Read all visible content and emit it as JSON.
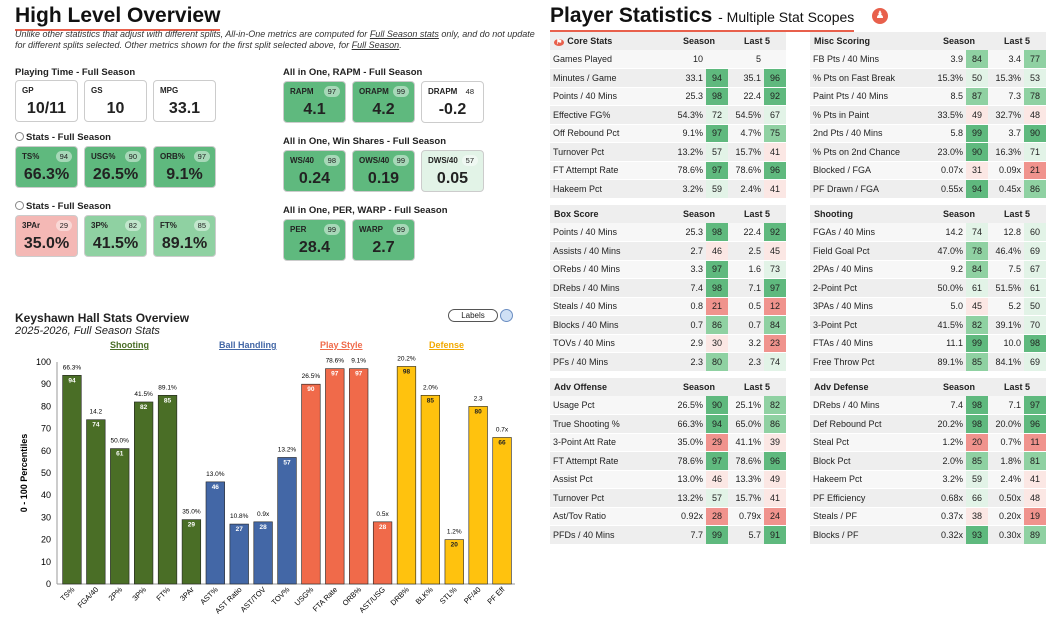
{
  "overview": {
    "title": "High Level Overview",
    "note": [
      "Unlike other statistics that adjust with different splits, All-in-One metrics are computed for ",
      "Full Season stats",
      " only, and do not update for different splits selected. Other metrics shown for the first split selected above, for ",
      "Full Season",
      "."
    ],
    "playing_time": {
      "title": "Playing Time - Full Season",
      "cards": [
        {
          "label": "GP",
          "value": "10/11"
        },
        {
          "label": "GS",
          "value": "10"
        },
        {
          "label": "MPG",
          "value": "33.1"
        }
      ]
    },
    "stats1": {
      "title": "Stats - Full Season",
      "cards": [
        {
          "label": "TS%",
          "value": "66.3%",
          "pct": "94"
        },
        {
          "label": "USG%",
          "value": "26.5%",
          "pct": "90"
        },
        {
          "label": "ORB%",
          "value": "9.1%",
          "pct": "97"
        }
      ]
    },
    "stats2": {
      "title": "Stats - Full Season",
      "cards": [
        {
          "label": "3PAr",
          "value": "35.0%",
          "pct": "29"
        },
        {
          "label": "3P%",
          "value": "41.5%",
          "pct": "82"
        },
        {
          "label": "FT%",
          "value": "89.1%",
          "pct": "85"
        }
      ]
    },
    "rapm": {
      "title": "All in One, RAPM - Full Season",
      "cards": [
        {
          "label": "RAPM",
          "value": "4.1",
          "pct": "97"
        },
        {
          "label": "ORAPM",
          "value": "4.2",
          "pct": "99"
        },
        {
          "label": "DRAPM",
          "value": "-0.2",
          "pct": "48"
        }
      ]
    },
    "ws": {
      "title": "All in One, Win Shares - Full Season",
      "cards": [
        {
          "label": "WS/40",
          "value": "0.24",
          "pct": "98"
        },
        {
          "label": "OWS/40",
          "value": "0.19",
          "pct": "99"
        },
        {
          "label": "DWS/40",
          "value": "0.05",
          "pct": "57"
        }
      ]
    },
    "per": {
      "title": "All in One, PER, WARP - Full Season",
      "cards": [
        {
          "label": "PER",
          "value": "28.4",
          "pct": "99"
        },
        {
          "label": "WARP",
          "value": "2.7",
          "pct": "99"
        }
      ]
    }
  },
  "player_stats": {
    "title": "Player Statistics",
    "subtitle": "- Multiple Stat Scopes",
    "tables": [
      {
        "name": "Core Stats",
        "cols": [
          "Season",
          "Last 5"
        ],
        "rows": [
          [
            "Games Played",
            "10",
            "",
            "5",
            ""
          ],
          [
            "Minutes / Game",
            "33.1",
            "94",
            "35.1",
            "96"
          ],
          [
            "Points / 40 Mins",
            "25.3",
            "98",
            "22.4",
            "92"
          ],
          [
            "Effective FG%",
            "54.3%",
            "72",
            "54.5%",
            "67"
          ],
          [
            "Off Rebound Pct",
            "9.1%",
            "97",
            "4.7%",
            "75"
          ],
          [
            "Turnover Pct",
            "13.2%",
            "57",
            "15.7%",
            "41"
          ],
          [
            "FT Attempt Rate",
            "78.6%",
            "97",
            "78.6%",
            "96"
          ],
          [
            "Hakeem Pct",
            "3.2%",
            "59",
            "2.4%",
            "41"
          ]
        ]
      },
      {
        "name": "Misc Scoring",
        "cols": [
          "Season",
          "Last 5"
        ],
        "rows": [
          [
            "FB Pts / 40 Mins",
            "3.9",
            "84",
            "3.4",
            "77"
          ],
          [
            "% Pts on Fast Break",
            "15.3%",
            "50",
            "15.3%",
            "53"
          ],
          [
            "Paint Pts / 40 Mins",
            "8.5",
            "87",
            "7.3",
            "78"
          ],
          [
            "% Pts in Paint",
            "33.5%",
            "49",
            "32.7%",
            "48"
          ],
          [
            "2nd Pts / 40 Mins",
            "5.8",
            "99",
            "3.7",
            "90"
          ],
          [
            "% Pts on 2nd Chance",
            "23.0%",
            "90",
            "16.3%",
            "71"
          ],
          [
            "Blocked / FGA",
            "0.07x",
            "31",
            "0.09x",
            "21"
          ],
          [
            "PF Drawn / FGA",
            "0.55x",
            "94",
            "0.45x",
            "86"
          ]
        ]
      },
      {
        "name": "Box Score",
        "cols": [
          "Season",
          "Last 5"
        ],
        "rows": [
          [
            "Points / 40 Mins",
            "25.3",
            "98",
            "22.4",
            "92"
          ],
          [
            "Assists / 40 Mins",
            "2.7",
            "46",
            "2.5",
            "45"
          ],
          [
            "ORebs / 40 Mins",
            "3.3",
            "97",
            "1.6",
            "73"
          ],
          [
            "DRebs / 40 Mins",
            "7.4",
            "98",
            "7.1",
            "97"
          ],
          [
            "Steals / 40 Mins",
            "0.8",
            "21",
            "0.5",
            "12"
          ],
          [
            "Blocks / 40 Mins",
            "0.7",
            "86",
            "0.7",
            "84"
          ],
          [
            "TOVs / 40 Mins",
            "2.9",
            "30",
            "3.2",
            "23"
          ],
          [
            "PFs / 40 Mins",
            "2.3",
            "80",
            "2.3",
            "74"
          ]
        ]
      },
      {
        "name": "Shooting",
        "cols": [
          "Season",
          "Last 5"
        ],
        "rows": [
          [
            "FGAs / 40 Mins",
            "14.2",
            "74",
            "12.8",
            "60"
          ],
          [
            "Field Goal Pct",
            "47.0%",
            "78",
            "46.4%",
            "69"
          ],
          [
            "2PAs / 40 Mins",
            "9.2",
            "84",
            "7.5",
            "67"
          ],
          [
            "2-Point Pct",
            "50.0%",
            "61",
            "51.5%",
            "61"
          ],
          [
            "3PAs / 40 Mins",
            "5.0",
            "45",
            "5.2",
            "50"
          ],
          [
            "3-Point Pct",
            "41.5%",
            "82",
            "39.1%",
            "70"
          ],
          [
            "FTAs / 40 Mins",
            "11.1",
            "99",
            "10.0",
            "98"
          ],
          [
            "Free Throw Pct",
            "89.1%",
            "85",
            "84.1%",
            "69"
          ]
        ]
      },
      {
        "name": "Adv Offense",
        "cols": [
          "Season",
          "Last 5"
        ],
        "rows": [
          [
            "Usage Pct",
            "26.5%",
            "90",
            "25.1%",
            "82"
          ],
          [
            "True Shooting %",
            "66.3%",
            "94",
            "65.0%",
            "86"
          ],
          [
            "3-Point Att Rate",
            "35.0%",
            "29",
            "41.1%",
            "39"
          ],
          [
            "FT Attempt Rate",
            "78.6%",
            "97",
            "78.6%",
            "96"
          ],
          [
            "Assist Pct",
            "13.0%",
            "46",
            "13.3%",
            "49"
          ],
          [
            "Turnover Pct",
            "13.2%",
            "57",
            "15.7%",
            "41"
          ],
          [
            "Ast/Tov Ratio",
            "0.92x",
            "28",
            "0.79x",
            "24"
          ],
          [
            "PFDs / 40 Mins",
            "7.7",
            "99",
            "5.7",
            "91"
          ]
        ]
      },
      {
        "name": "Adv Defense",
        "cols": [
          "Season",
          "Last 5"
        ],
        "rows": [
          [
            "DRebs / 40 Mins",
            "7.4",
            "98",
            "7.1",
            "97"
          ],
          [
            "Def Rebound Pct",
            "20.2%",
            "98",
            "20.0%",
            "96"
          ],
          [
            "Steal Pct",
            "1.2%",
            "20",
            "0.7%",
            "11"
          ],
          [
            "Block Pct",
            "2.0%",
            "85",
            "1.8%",
            "81"
          ],
          [
            "Hakeem Pct",
            "3.2%",
            "59",
            "2.4%",
            "41"
          ],
          [
            "PF Efficiency",
            "0.68x",
            "66",
            "0.50x",
            "48"
          ],
          [
            "Steals / PF",
            "0.37x",
            "38",
            "0.20x",
            "19"
          ],
          [
            "Blocks / PF",
            "0.32x",
            "93",
            "0.30x",
            "89"
          ]
        ]
      }
    ]
  },
  "chart_toggle": "Labels",
  "chart_data": {
    "type": "bar",
    "title": "Keyshawn Hall Stats Overview",
    "subtitle": "2025-2026, Full Season Stats",
    "ylabel": "0 - 100 Percentiles",
    "ylim": [
      0,
      100
    ],
    "yticks": [
      0,
      10,
      20,
      30,
      40,
      50,
      60,
      70,
      80,
      90,
      100
    ],
    "groups": [
      {
        "name": "Shooting",
        "color": "#4a6e26"
      },
      {
        "name": "Ball Handling",
        "color": "#4367a6"
      },
      {
        "name": "Play Style",
        "color": "#f06a4a"
      },
      {
        "name": "Defense",
        "color": "#ffc20e"
      }
    ],
    "bars": [
      {
        "cat": "TS%",
        "value": 94,
        "label": "66.3%",
        "group": 0
      },
      {
        "cat": "FGA/40",
        "value": 74,
        "label": "14.2",
        "group": 0
      },
      {
        "cat": "2P%",
        "value": 61,
        "label": "50.0%",
        "group": 0
      },
      {
        "cat": "3P%",
        "value": 82,
        "label": "41.5%",
        "group": 0
      },
      {
        "cat": "FT%",
        "value": 85,
        "label": "89.1%",
        "group": 0
      },
      {
        "cat": "3PAr",
        "value": 29,
        "label": "35.0%",
        "group": 0
      },
      {
        "cat": "AST%",
        "value": 46,
        "label": "13.0%",
        "group": 1
      },
      {
        "cat": "AST Ratio",
        "value": 27,
        "label": "10.8%",
        "group": 1
      },
      {
        "cat": "AST/TOV",
        "value": 28,
        "label": "0.9x",
        "group": 1
      },
      {
        "cat": "TOV%",
        "value": 57,
        "label": "13.2%",
        "group": 1
      },
      {
        "cat": "USG%",
        "value": 90,
        "label": "26.5%",
        "group": 2
      },
      {
        "cat": "FTA Rate",
        "value": 97,
        "label": "78.6%",
        "group": 2
      },
      {
        "cat": "ORB%",
        "value": 97,
        "label": "9.1%",
        "group": 2
      },
      {
        "cat": "AST/USG",
        "value": 28,
        "label": "0.5x",
        "group": 2
      },
      {
        "cat": "DRB%",
        "value": 98,
        "label": "20.2%",
        "group": 3
      },
      {
        "cat": "BLK%",
        "value": 85,
        "label": "2.0%",
        "group": 3
      },
      {
        "cat": "STL%",
        "value": 20,
        "label": "1.2%",
        "group": 3
      },
      {
        "cat": "PF/40",
        "value": 80,
        "label": "2.3",
        "group": 3
      },
      {
        "cat": "PF Eff",
        "value": 66,
        "label": "0.7x",
        "group": 3
      }
    ]
  }
}
